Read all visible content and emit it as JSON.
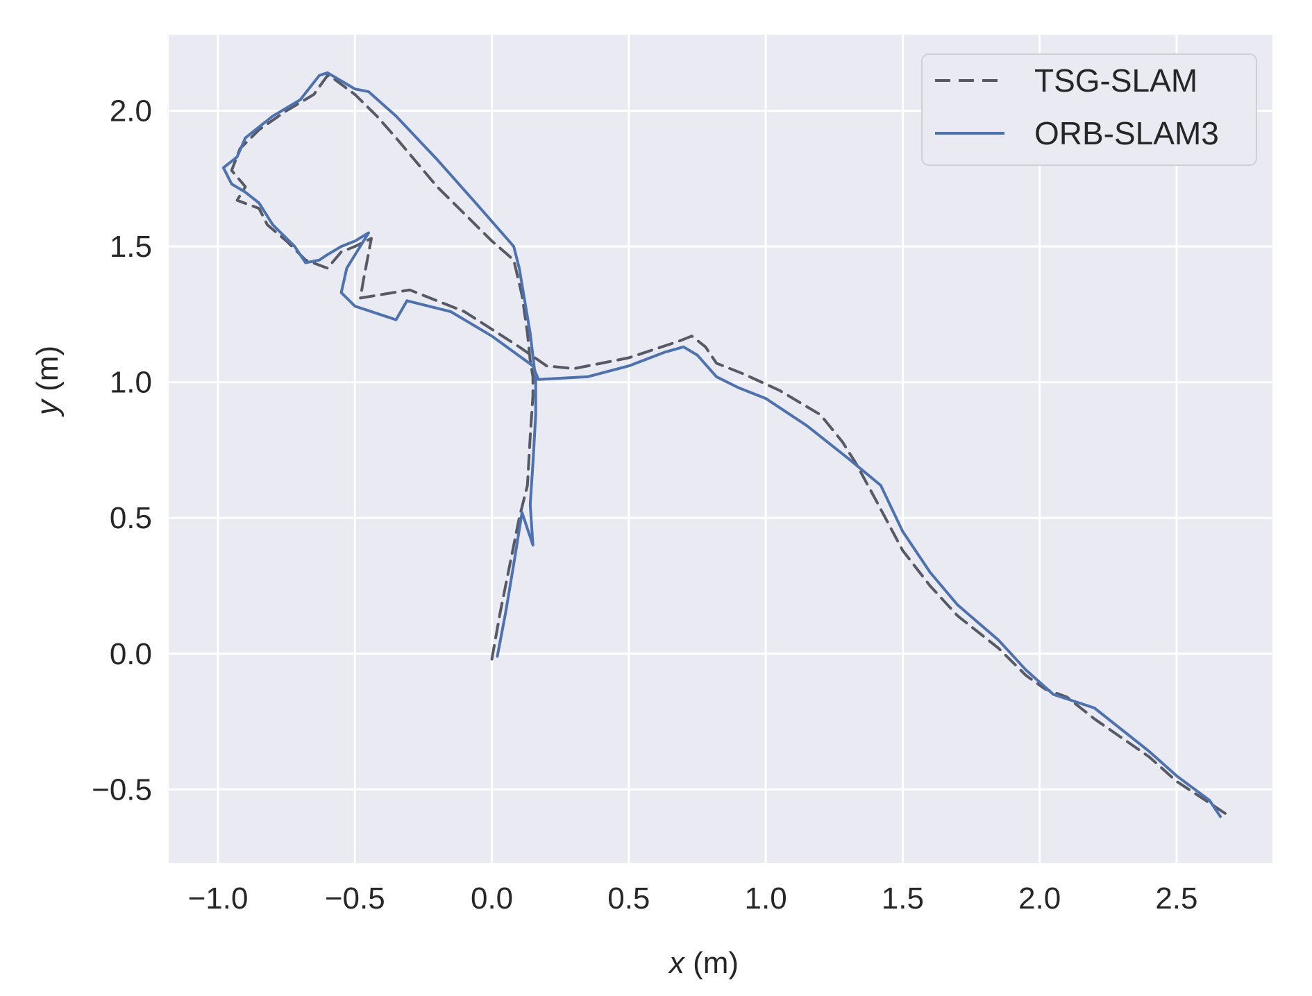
{
  "chart_data": {
    "type": "line",
    "xlabel_var": "x",
    "xlabel_unit": "(m)",
    "ylabel_var": "y",
    "ylabel_unit": "(m)",
    "xlim": [
      -1.18,
      2.85
    ],
    "ylim": [
      -0.77,
      2.28
    ],
    "xticks": [
      -1.0,
      -0.5,
      0.0,
      0.5,
      1.0,
      1.5,
      2.0,
      2.5
    ],
    "xtick_labels": [
      "−1.0",
      "−0.5",
      "0.0",
      "0.5",
      "1.0",
      "1.5",
      "2.0",
      "2.5"
    ],
    "yticks": [
      -0.5,
      0.0,
      0.5,
      1.0,
      1.5,
      2.0
    ],
    "ytick_labels": [
      "−0.5",
      "0.0",
      "0.5",
      "1.0",
      "1.5",
      "2.0"
    ],
    "grid": true,
    "legend_position": "top-right",
    "background": "#eaeaf2",
    "grid_color": "#ffffff",
    "series": [
      {
        "name": "TSG-SLAM",
        "style": "dashed",
        "color": "#555a66",
        "points": [
          [
            0.0,
            -0.02
          ],
          [
            0.03,
            0.15
          ],
          [
            0.07,
            0.35
          ],
          [
            0.1,
            0.5
          ],
          [
            0.13,
            0.62
          ],
          [
            0.14,
            0.8
          ],
          [
            0.15,
            0.95
          ],
          [
            0.15,
            1.02
          ],
          [
            0.14,
            1.08
          ],
          [
            0.13,
            1.18
          ],
          [
            0.11,
            1.32
          ],
          [
            0.08,
            1.45
          ],
          [
            0.0,
            1.52
          ],
          [
            -0.2,
            1.72
          ],
          [
            -0.35,
            1.9
          ],
          [
            -0.42,
            1.98
          ],
          [
            -0.5,
            2.06
          ],
          [
            -0.58,
            2.12
          ],
          [
            -0.6,
            2.13
          ],
          [
            -0.65,
            2.06
          ],
          [
            -0.75,
            2.0
          ],
          [
            -0.85,
            1.93
          ],
          [
            -0.92,
            1.86
          ],
          [
            -0.95,
            1.78
          ],
          [
            -0.9,
            1.72
          ],
          [
            -0.93,
            1.67
          ],
          [
            -0.85,
            1.64
          ],
          [
            -0.82,
            1.58
          ],
          [
            -0.75,
            1.52
          ],
          [
            -0.68,
            1.45
          ],
          [
            -0.6,
            1.42
          ],
          [
            -0.55,
            1.48
          ],
          [
            -0.5,
            1.5
          ],
          [
            -0.44,
            1.53
          ],
          [
            -0.47,
            1.37
          ],
          [
            -0.48,
            1.31
          ],
          [
            -0.3,
            1.34
          ],
          [
            -0.1,
            1.26
          ],
          [
            0.1,
            1.13
          ],
          [
            0.2,
            1.06
          ],
          [
            0.3,
            1.05
          ],
          [
            0.5,
            1.09
          ],
          [
            0.68,
            1.15
          ],
          [
            0.73,
            1.17
          ],
          [
            0.78,
            1.13
          ],
          [
            0.82,
            1.07
          ],
          [
            0.92,
            1.03
          ],
          [
            1.05,
            0.97
          ],
          [
            1.2,
            0.88
          ],
          [
            1.28,
            0.78
          ],
          [
            1.33,
            0.7
          ],
          [
            1.4,
            0.57
          ],
          [
            1.5,
            0.38
          ],
          [
            1.6,
            0.25
          ],
          [
            1.7,
            0.14
          ],
          [
            1.85,
            0.02
          ],
          [
            1.95,
            -0.08
          ],
          [
            2.02,
            -0.13
          ],
          [
            2.1,
            -0.16
          ],
          [
            2.2,
            -0.24
          ],
          [
            2.4,
            -0.38
          ],
          [
            2.5,
            -0.47
          ],
          [
            2.62,
            -0.55
          ],
          [
            2.68,
            -0.59
          ]
        ]
      },
      {
        "name": "ORB-SLAM3",
        "style": "solid",
        "color": "#4c72b0",
        "points": [
          [
            0.02,
            -0.01
          ],
          [
            0.05,
            0.15
          ],
          [
            0.08,
            0.33
          ],
          [
            0.11,
            0.52
          ],
          [
            0.15,
            0.4
          ],
          [
            0.14,
            0.55
          ],
          [
            0.15,
            0.7
          ],
          [
            0.16,
            0.88
          ],
          [
            0.16,
            1.01
          ],
          [
            0.14,
            1.18
          ],
          [
            0.12,
            1.3
          ],
          [
            0.1,
            1.42
          ],
          [
            0.08,
            1.5
          ],
          [
            -0.05,
            1.65
          ],
          [
            -0.2,
            1.82
          ],
          [
            -0.35,
            1.98
          ],
          [
            -0.45,
            2.07
          ],
          [
            -0.5,
            2.08
          ],
          [
            -0.6,
            2.14
          ],
          [
            -0.63,
            2.13
          ],
          [
            -0.7,
            2.04
          ],
          [
            -0.8,
            1.98
          ],
          [
            -0.9,
            1.9
          ],
          [
            -0.93,
            1.83
          ],
          [
            -0.98,
            1.79
          ],
          [
            -0.95,
            1.73
          ],
          [
            -0.9,
            1.7
          ],
          [
            -0.85,
            1.66
          ],
          [
            -0.8,
            1.58
          ],
          [
            -0.72,
            1.5
          ],
          [
            -0.68,
            1.44
          ],
          [
            -0.63,
            1.45
          ],
          [
            -0.6,
            1.47
          ],
          [
            -0.55,
            1.5
          ],
          [
            -0.5,
            1.52
          ],
          [
            -0.45,
            1.55
          ],
          [
            -0.53,
            1.42
          ],
          [
            -0.55,
            1.33
          ],
          [
            -0.5,
            1.28
          ],
          [
            -0.35,
            1.23
          ],
          [
            -0.31,
            1.3
          ],
          [
            -0.15,
            1.26
          ],
          [
            0.0,
            1.17
          ],
          [
            0.15,
            1.06
          ],
          [
            0.17,
            1.01
          ],
          [
            0.35,
            1.02
          ],
          [
            0.5,
            1.06
          ],
          [
            0.63,
            1.11
          ],
          [
            0.7,
            1.13
          ],
          [
            0.75,
            1.1
          ],
          [
            0.82,
            1.02
          ],
          [
            0.9,
            0.98
          ],
          [
            1.0,
            0.94
          ],
          [
            1.15,
            0.84
          ],
          [
            1.3,
            0.72
          ],
          [
            1.42,
            0.62
          ],
          [
            1.5,
            0.45
          ],
          [
            1.6,
            0.3
          ],
          [
            1.7,
            0.18
          ],
          [
            1.85,
            0.05
          ],
          [
            1.95,
            -0.06
          ],
          [
            2.05,
            -0.15
          ],
          [
            2.2,
            -0.2
          ],
          [
            2.4,
            -0.36
          ],
          [
            2.5,
            -0.45
          ],
          [
            2.62,
            -0.54
          ],
          [
            2.66,
            -0.6
          ]
        ]
      }
    ]
  }
}
